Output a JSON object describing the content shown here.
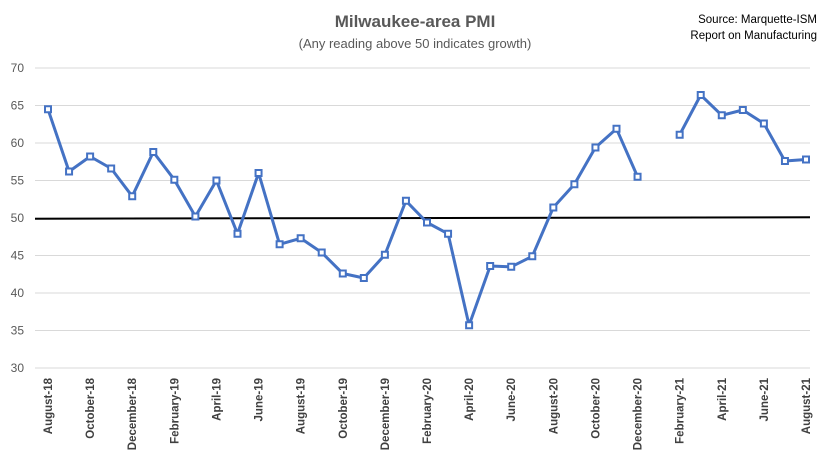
{
  "chart_data": {
    "type": "line",
    "title": "Milwaukee-area PMI",
    "subtitle": "(Any reading above 50 indicates growth)",
    "source": [
      "Source: Marquette-ISM",
      "Report on Manufacturing"
    ],
    "ylim": [
      30,
      70
    ],
    "yticks": [
      "30",
      "35",
      "40",
      "45",
      "50",
      "55",
      "60",
      "65",
      "70"
    ],
    "grid": true,
    "reference_line": 50,
    "colors": {
      "series": "#4472C4",
      "reference": "#000000",
      "grid": "#D9D9D9"
    },
    "categories": [
      "Aug-18",
      "Sep-18",
      "Oct-18",
      "Nov-18",
      "Dec-18",
      "Jan-19",
      "Feb-19",
      "Mar-19",
      "Apr-19",
      "May-19",
      "Jun-19",
      "Jul-19",
      "Aug-19",
      "Sep-19",
      "Oct-19",
      "Nov-19",
      "Dec-19",
      "Jan-20",
      "Feb-20",
      "Mar-20",
      "Apr-20",
      "May-20",
      "Jun-20",
      "Jul-20",
      "Aug-20",
      "Sep-20",
      "Oct-20",
      "Nov-20",
      "Dec-20",
      "Jan-21",
      "Feb-21",
      "Mar-21",
      "Apr-21",
      "May-21",
      "Jun-21",
      "Jul-21",
      "Aug-21"
    ],
    "x_tick_labels": [
      "August-18",
      "October-18",
      "December-18",
      "February-19",
      "April-19",
      "June-19",
      "August-19",
      "October-19",
      "December-19",
      "February-20",
      "April-20",
      "June-20",
      "August-20",
      "October-20",
      "December-20",
      "February-21",
      "April-21",
      "June-21",
      "August-21"
    ],
    "series": [
      {
        "values": [
          64.5,
          56.2,
          58.2,
          56.6,
          52.9,
          58.8,
          55.1,
          50.2,
          55.0,
          47.9,
          56.0,
          46.5,
          47.3,
          45.4,
          42.6,
          42.0,
          45.1,
          52.3,
          49.4,
          47.9,
          35.7,
          43.6,
          43.5,
          44.9,
          51.4,
          54.5,
          59.4,
          61.9,
          55.5,
          null,
          61.1,
          66.4,
          63.7,
          64.4,
          62.6,
          57.6,
          57.8
        ]
      }
    ]
  }
}
